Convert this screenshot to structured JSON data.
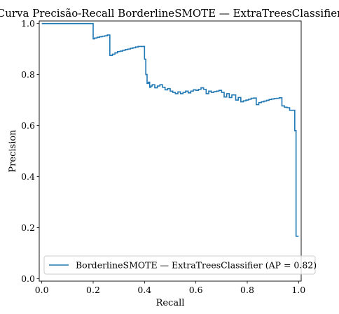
{
  "chart_data": {
    "type": "line",
    "title": "Curva Precisão-Recall BorderlineSMOTE — ExtraTreesClassifier",
    "xlabel": "Recall",
    "ylabel": "Precision",
    "xlim": [
      -0.01,
      1.01
    ],
    "ylim": [
      -0.01,
      1.01
    ],
    "x_ticks": [
      "0.0",
      "0.2",
      "0.4",
      "0.6",
      "0.8",
      "1.0"
    ],
    "y_ticks": [
      "0.0",
      "0.2",
      "0.4",
      "0.6",
      "0.8",
      "1.0"
    ],
    "grid": false,
    "legend_position": "lower right",
    "step": "post",
    "series": [
      {
        "name": "BorderlineSMOTE — ExtraTreesClassifier (AP = 0.82)",
        "color": "#1f77b4",
        "x": [
          0.0,
          0.2,
          0.205,
          0.215,
          0.225,
          0.235,
          0.245,
          0.255,
          0.265,
          0.275,
          0.285,
          0.295,
          0.305,
          0.315,
          0.325,
          0.335,
          0.345,
          0.355,
          0.365,
          0.375,
          0.385,
          0.4,
          0.405,
          0.41,
          0.415,
          0.42,
          0.425,
          0.43,
          0.44,
          0.45,
          0.46,
          0.47,
          0.48,
          0.49,
          0.5,
          0.51,
          0.52,
          0.53,
          0.54,
          0.55,
          0.56,
          0.57,
          0.58,
          0.59,
          0.6,
          0.61,
          0.62,
          0.63,
          0.64,
          0.65,
          0.66,
          0.67,
          0.68,
          0.69,
          0.7,
          0.71,
          0.72,
          0.73,
          0.74,
          0.755,
          0.765,
          0.775,
          0.785,
          0.795,
          0.805,
          0.815,
          0.825,
          0.835,
          0.845,
          0.855,
          0.865,
          0.875,
          0.885,
          0.895,
          0.905,
          0.915,
          0.925,
          0.935,
          0.945,
          0.955,
          0.965,
          0.975,
          0.985,
          0.99,
          0.995,
          1.0
        ],
        "y": [
          1.0,
          0.94,
          0.943,
          0.946,
          0.948,
          0.95,
          0.952,
          0.955,
          0.875,
          0.88,
          0.885,
          0.89,
          0.892,
          0.895,
          0.898,
          0.9,
          0.903,
          0.905,
          0.908,
          0.91,
          0.91,
          0.86,
          0.8,
          0.765,
          0.77,
          0.75,
          0.755,
          0.76,
          0.748,
          0.755,
          0.76,
          0.75,
          0.74,
          0.745,
          0.735,
          0.73,
          0.725,
          0.732,
          0.725,
          0.73,
          0.735,
          0.728,
          0.735,
          0.74,
          0.738,
          0.742,
          0.748,
          0.742,
          0.725,
          0.735,
          0.73,
          0.733,
          0.735,
          0.738,
          0.73,
          0.712,
          0.725,
          0.71,
          0.72,
          0.7,
          0.71,
          0.693,
          0.697,
          0.7,
          0.703,
          0.707,
          0.708,
          0.682,
          0.69,
          0.693,
          0.696,
          0.699,
          0.702,
          0.704,
          0.706,
          0.707,
          0.709,
          0.677,
          0.672,
          0.67,
          0.66,
          0.66,
          0.58,
          0.166,
          0.166,
          0.166
        ]
      }
    ]
  }
}
